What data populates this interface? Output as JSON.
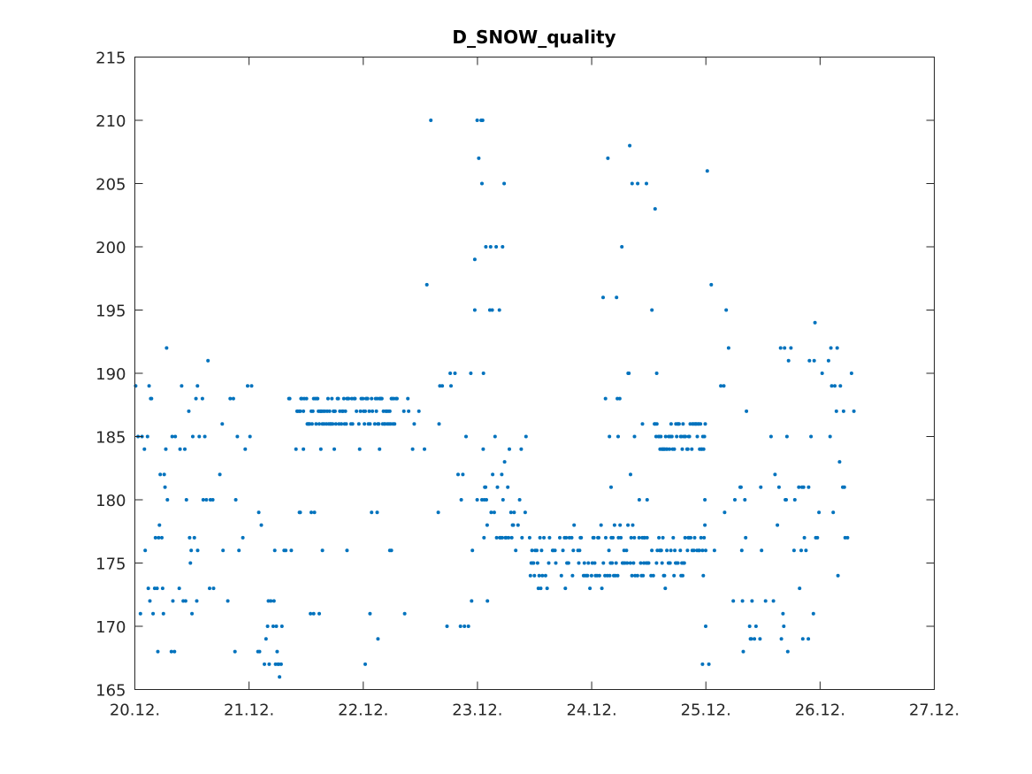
{
  "chart_data": {
    "type": "scatter",
    "title": "D_SNOW_quality",
    "xlabel": "",
    "ylabel": "",
    "xlim": [
      "20.12.",
      "27.12."
    ],
    "ylim": [
      165,
      215
    ],
    "x_ticks": [
      "20.12.",
      "21.12.",
      "22.12.",
      "23.12.",
      "24.12.",
      "25.12.",
      "26.12.",
      "27.12."
    ],
    "y_ticks": [
      165,
      170,
      175,
      180,
      185,
      190,
      195,
      200,
      205,
      210,
      215
    ],
    "grid": false,
    "legend": null,
    "marker_color": "#0072BD",
    "x_units": "days since 20.12. 00:00",
    "series": [
      {
        "name": "D_SNOW_quality",
        "segments": [
          {
            "x": [
              0.0,
              0.55
            ],
            "y": [
              166,
              192
            ],
            "density": 0.55,
            "prefer": [
              168,
              171,
              172,
              173,
              176,
              177,
              180,
              181,
              184,
              185,
              188,
              189
            ]
          },
          {
            "x": [
              0.55,
              1.1
            ],
            "y": [
              166,
              192
            ],
            "density": 0.45,
            "prefer": [
              168,
              172,
              176,
              180,
              184,
              185,
              188,
              189
            ]
          },
          {
            "x": [
              1.1,
              1.3
            ],
            "y": [
              166,
              181
            ],
            "density": 0.7,
            "prefer": [
              167,
              168,
              169,
              170,
              172
            ]
          },
          {
            "x": [
              1.3,
              1.42
            ],
            "y": [
              168,
              194
            ],
            "density": 0.25,
            "prefer": [
              172,
              176,
              180,
              184,
              188
            ]
          },
          {
            "x": [
              1.42,
              2.3
            ],
            "y": [
              186,
              188
            ],
            "density": 0.85,
            "prefer": [
              186,
              187,
              188
            ]
          },
          {
            "x": [
              1.42,
              2.3
            ],
            "y": [
              165,
              185
            ],
            "density": 0.12,
            "prefer": [
              171,
              176,
              179,
              183,
              184
            ]
          },
          {
            "x": [
              2.3,
              2.55
            ],
            "y": [
              167,
              189
            ],
            "density": 0.3,
            "prefer": [
              180,
              184,
              186,
              187,
              188
            ]
          },
          {
            "x": [
              2.55,
              2.65
            ],
            "y": [
              169,
              210
            ],
            "density": 0.4,
            "prefer": [
              197,
              200,
              204,
              206,
              208,
              210
            ]
          },
          {
            "x": [
              2.65,
              3.1
            ],
            "y": [
              168,
              200
            ],
            "density": 0.35,
            "prefer": [
              170,
              172,
              176,
              180,
              185,
              189,
              190
            ]
          },
          {
            "x": [
              2.9,
              3.25
            ],
            "y": [
              175,
              214
            ],
            "density": 0.3,
            "prefer": [
              195,
              200,
              205,
              210
            ]
          },
          {
            "x": [
              3.05,
              3.45
            ],
            "y": [
              176,
              185
            ],
            "density": 0.6,
            "prefer": [
              177,
              178,
              179,
              180,
              181
            ]
          },
          {
            "x": [
              3.45,
              5.0
            ],
            "y": [
              173,
              178
            ],
            "density": 0.7,
            "prefer": [
              174,
              175,
              176,
              177
            ]
          },
          {
            "x": [
              4.1,
              4.25
            ],
            "y": [
              167,
              210
            ],
            "density": 0.35,
            "prefer": [
              184,
              185,
              188,
              190,
              196
            ]
          },
          {
            "x": [
              4.25,
              4.6
            ],
            "y": [
              175,
              208
            ],
            "density": 0.3,
            "prefer": [
              180,
              185,
              190,
              195,
              200,
              205
            ]
          },
          {
            "x": [
              4.55,
              5.0
            ],
            "y": [
              184,
              186
            ],
            "density": 0.85,
            "prefer": [
              184,
              185,
              186
            ]
          },
          {
            "x": [
              4.95,
              5.15
            ],
            "y": [
              165,
              209
            ],
            "density": 0.3,
            "prefer": [
              167,
              168,
              170,
              171,
              176,
              180,
              184,
              188,
              189
            ]
          },
          {
            "x": [
              5.15,
              5.3
            ],
            "y": [
              168,
              200
            ],
            "density": 0.3,
            "prefer": [
              176,
              180,
              185,
              190,
              195,
              198
            ]
          },
          {
            "x": [
              5.3,
              5.9
            ],
            "y": [
              168,
              192
            ],
            "density": 0.5,
            "prefer": [
              168,
              169,
              172,
              173,
              176,
              177,
              180,
              181
            ]
          },
          {
            "x": [
              5.9,
              6.3
            ],
            "y": [
              170,
              194
            ],
            "density": 0.5,
            "prefer": [
              177,
              179,
              181,
              183,
              185,
              187,
              189,
              191,
              192
            ]
          }
        ]
      }
    ]
  }
}
